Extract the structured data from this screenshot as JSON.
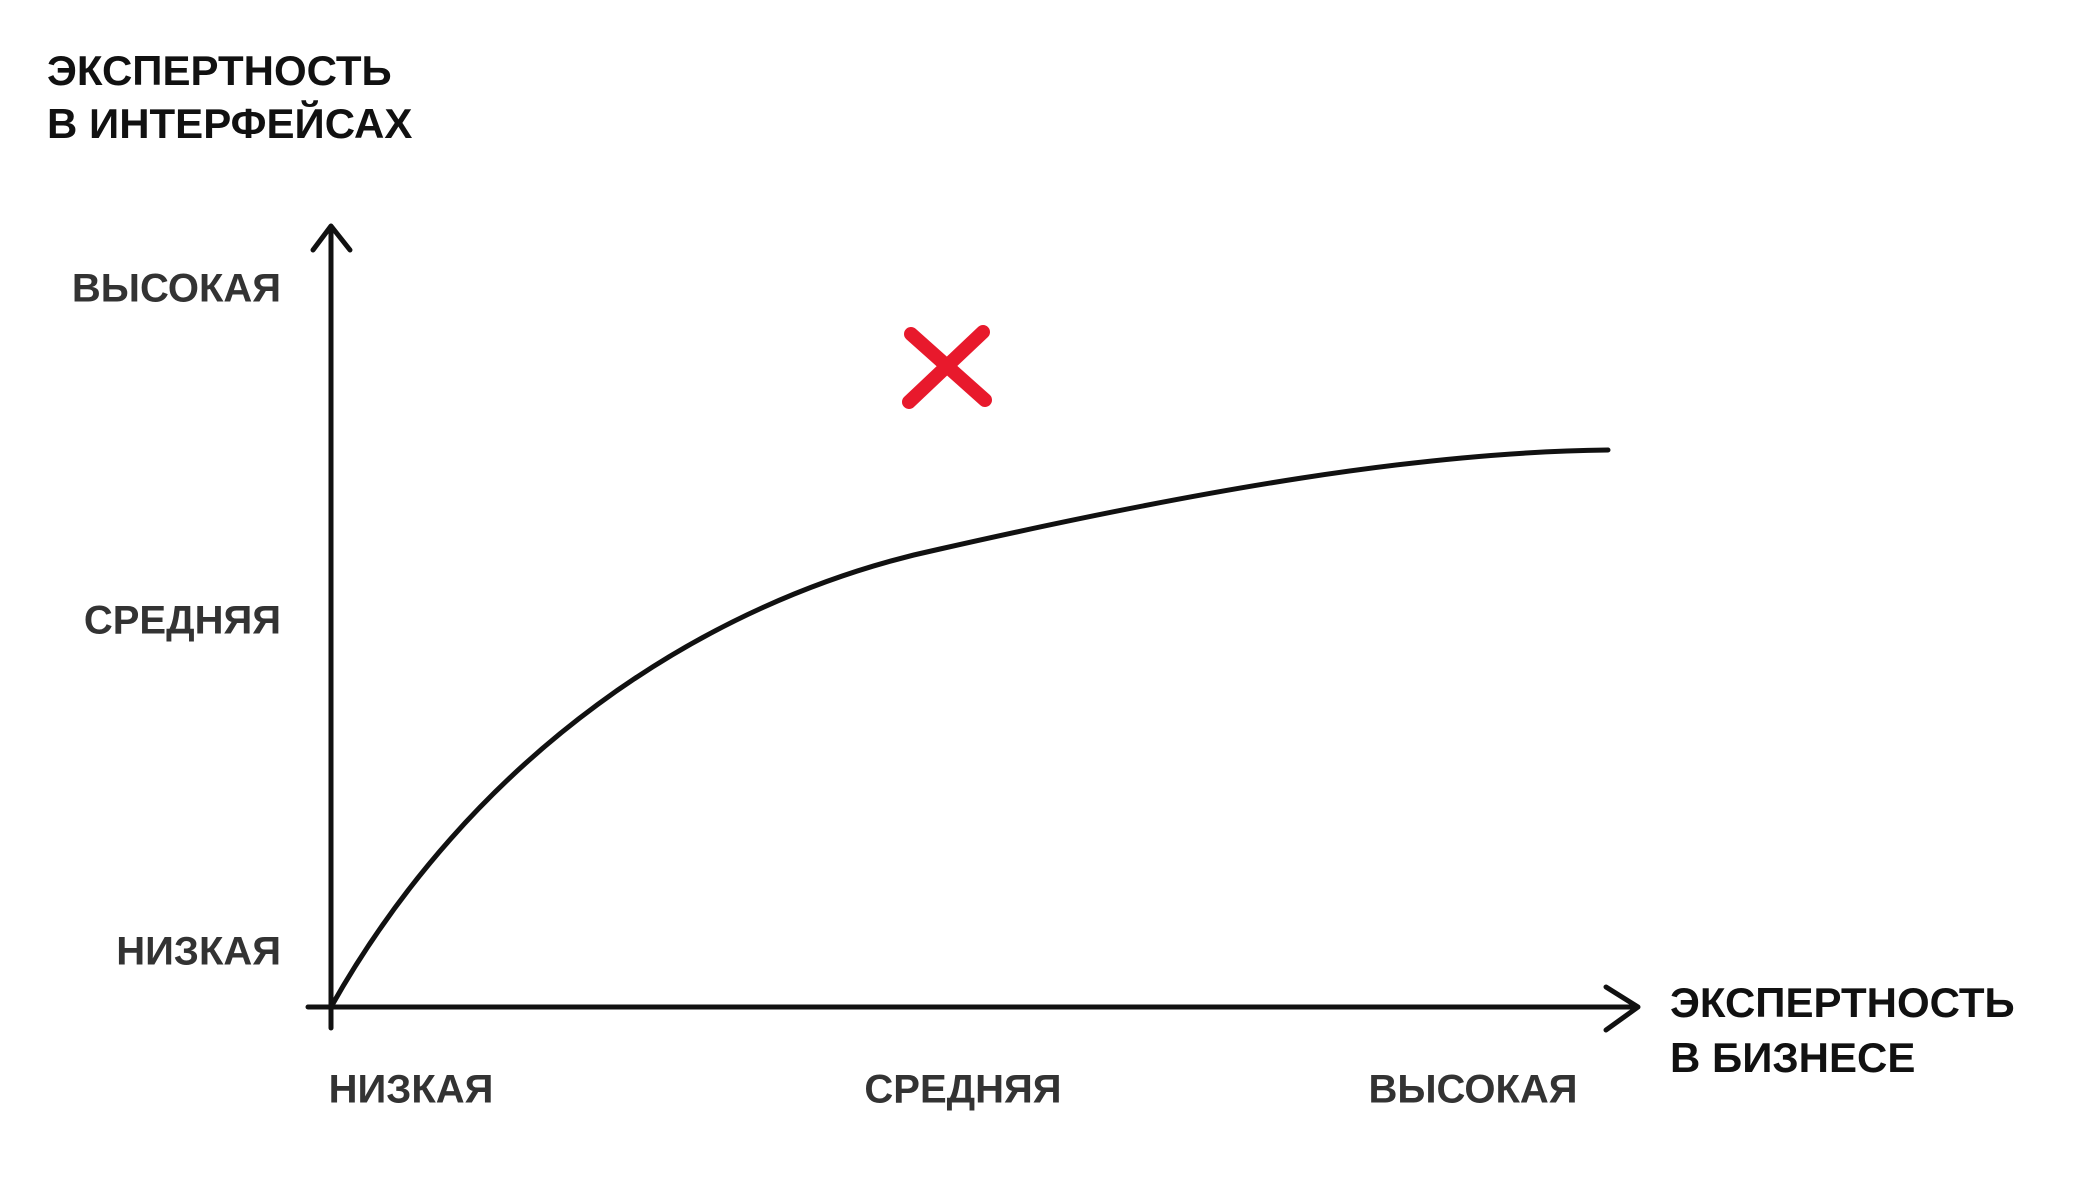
{
  "y_axis": {
    "title_lines": [
      "ЭКСПЕРТНОСТЬ",
      "В ИНТЕРФЕЙСАХ"
    ],
    "levels": [
      "ВЫСОКАЯ",
      "СРЕДНЯЯ",
      "НИЗКАЯ"
    ]
  },
  "x_axis": {
    "title_lines": [
      "ЭКСПЕРТНОСТЬ",
      "В БИЗНЕСЕ"
    ],
    "levels": [
      "НИЗКАЯ",
      "СРЕДНЯЯ",
      "ВЫСОКАЯ"
    ]
  }
}
